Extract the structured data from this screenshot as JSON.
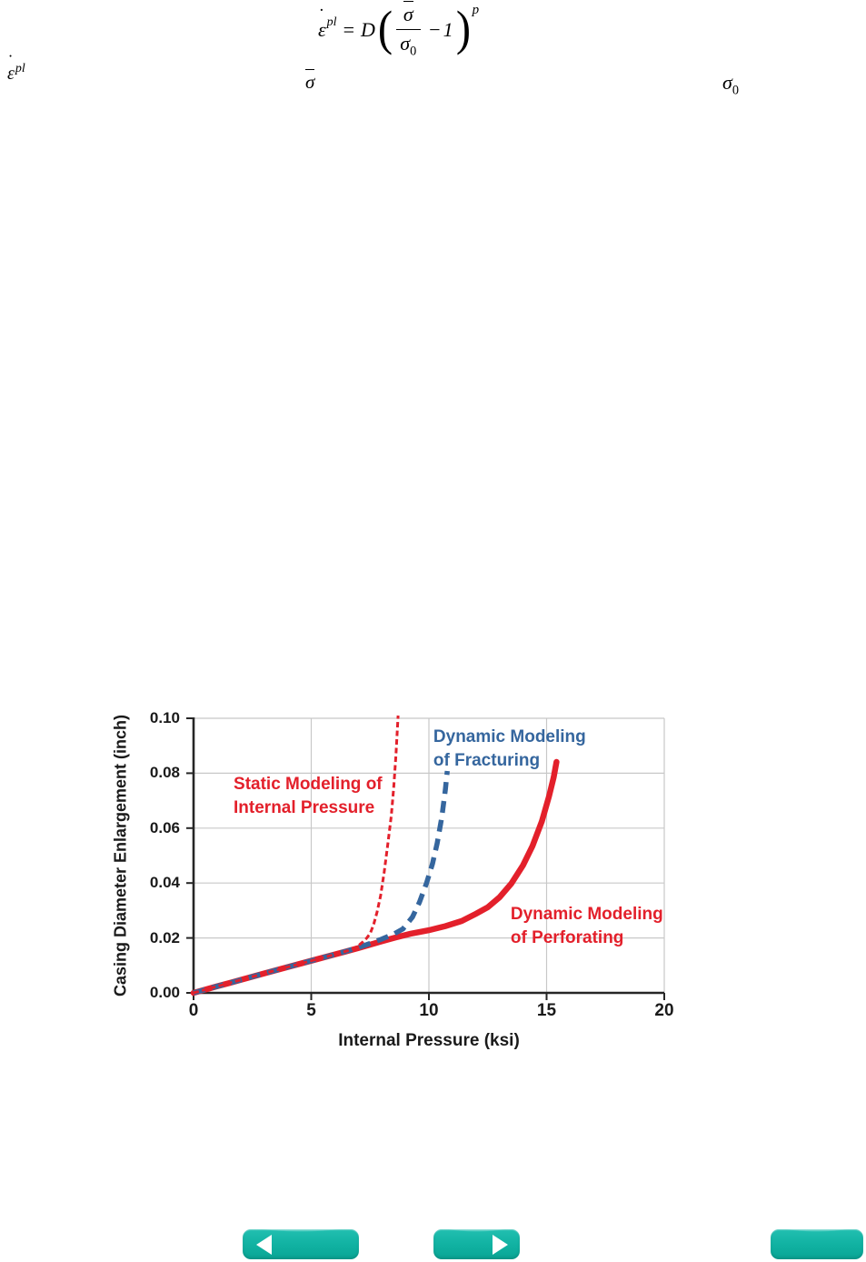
{
  "page": {
    "background": "#ffffff"
  },
  "colors": {
    "series_red": "#e3202b",
    "series_blue": "#35669e",
    "gridline": "#c8c8c8",
    "axis": "#262626",
    "button_teal": "#10b1a1",
    "button_teal_highlight": "#3dcabc",
    "button_glyph": "#ffffff"
  },
  "equation": {
    "lhs_accent": "˙",
    "lhs_base": "ε",
    "lhs_sup": "pl",
    "equals": "=",
    "coefficient": "D",
    "open_paren": "(",
    "numerator": "σ",
    "denominator": "σ",
    "denominator_sub": "0",
    "minus_one": "−1",
    "close_paren": ")",
    "exponent": "p"
  },
  "inline_symbols": {
    "strain_rate": {
      "accent": "˙",
      "base": "ε",
      "sup": "pl"
    },
    "effective_stress": {
      "base": "σ"
    },
    "yield_stress": {
      "base": "σ",
      "sub": "0"
    }
  },
  "chart_data": {
    "type": "line",
    "title": "",
    "xlabel": "Internal Pressure (ksi)",
    "ylabel": "Casing Diameter Enlargement (inch)",
    "xlim": [
      0,
      20
    ],
    "ylim": [
      0,
      0.1
    ],
    "x_ticks": [
      0,
      5,
      10,
      15,
      20
    ],
    "x_tick_labels": [
      "0",
      "5",
      "10",
      "15",
      "20"
    ],
    "y_ticks": [
      0,
      0.02,
      0.04,
      0.06,
      0.08,
      0.1
    ],
    "y_tick_labels": [
      "0.00",
      "0.02",
      "0.04",
      "0.06",
      "0.08",
      "0.10"
    ],
    "grid": true,
    "legend_position": "inline-annotations",
    "series": [
      {
        "name": "Dynamic Modeling of Perforating",
        "color": "#e3202b",
        "style": "solid-thick",
        "points": [
          [
            0,
            0
          ],
          [
            1,
            0.0024
          ],
          [
            2,
            0.0047
          ],
          [
            3,
            0.0071
          ],
          [
            4,
            0.0094
          ],
          [
            5,
            0.0117
          ],
          [
            6,
            0.014
          ],
          [
            7,
            0.0163
          ],
          [
            8,
            0.0188
          ],
          [
            8.6,
            0.0202
          ],
          [
            9.2,
            0.0215
          ],
          [
            10,
            0.0228
          ],
          [
            10.7,
            0.0243
          ],
          [
            11.4,
            0.0262
          ],
          [
            12,
            0.0288
          ],
          [
            12.5,
            0.0312
          ],
          [
            13,
            0.0348
          ],
          [
            13.5,
            0.0398
          ],
          [
            14,
            0.0465
          ],
          [
            14.4,
            0.0535
          ],
          [
            14.8,
            0.0625
          ],
          [
            15.1,
            0.0715
          ],
          [
            15.3,
            0.0785
          ],
          [
            15.42,
            0.0841
          ]
        ]
      },
      {
        "name": "Dynamic Modeling of Fracturing",
        "color": "#35669e",
        "style": "dashed-thick",
        "points": [
          [
            0,
            0
          ],
          [
            1,
            0.0024
          ],
          [
            2,
            0.0047
          ],
          [
            3,
            0.0071
          ],
          [
            4,
            0.0094
          ],
          [
            5,
            0.0117
          ],
          [
            6,
            0.014
          ],
          [
            6.5,
            0.0152
          ],
          [
            7,
            0.0165
          ],
          [
            7.5,
            0.018
          ],
          [
            8,
            0.0196
          ],
          [
            8.5,
            0.0214
          ],
          [
            8.9,
            0.0233
          ],
          [
            9.3,
            0.0276
          ],
          [
            9.6,
            0.033
          ],
          [
            9.9,
            0.04
          ],
          [
            10.15,
            0.047
          ],
          [
            10.35,
            0.0545
          ],
          [
            10.55,
            0.064
          ],
          [
            10.7,
            0.074
          ],
          [
            10.78,
            0.0808
          ]
        ]
      },
      {
        "name": "Static Modeling of Internal Pressure",
        "color": "#e3202b",
        "style": "dashed-thin",
        "points": [
          [
            0,
            0
          ],
          [
            1,
            0.0024
          ],
          [
            2,
            0.0047
          ],
          [
            3,
            0.0071
          ],
          [
            4,
            0.0094
          ],
          [
            5,
            0.0117
          ],
          [
            6,
            0.014
          ],
          [
            6.5,
            0.0152
          ],
          [
            6.8,
            0.0161
          ],
          [
            7,
            0.0172
          ],
          [
            7.2,
            0.0186
          ],
          [
            7.35,
            0.0199
          ],
          [
            7.5,
            0.0216
          ],
          [
            7.65,
            0.0248
          ],
          [
            7.8,
            0.0295
          ],
          [
            7.95,
            0.0355
          ],
          [
            8.1,
            0.044
          ],
          [
            8.25,
            0.054
          ],
          [
            8.4,
            0.0645
          ],
          [
            8.5,
            0.0745
          ],
          [
            8.6,
            0.0865
          ],
          [
            8.69,
            0.101
          ]
        ]
      }
    ],
    "annotations": [
      {
        "lines": [
          "Static Modeling of",
          "Internal Pressure"
        ],
        "color": "#e3202b",
        "x": 1.7,
        "y": 0.0801
      },
      {
        "lines": [
          "Dynamic Modeling",
          "of Fracturing"
        ],
        "color": "#35669e",
        "x": 10.19,
        "y": 0.0974
      },
      {
        "lines": [
          "Dynamic Modeling",
          "of Perforating"
        ],
        "color": "#e3202b",
        "x": 13.47,
        "y": 0.0328
      }
    ]
  },
  "nav": {
    "prev_icon": "left-arrow",
    "next_icon": "right-arrow"
  }
}
